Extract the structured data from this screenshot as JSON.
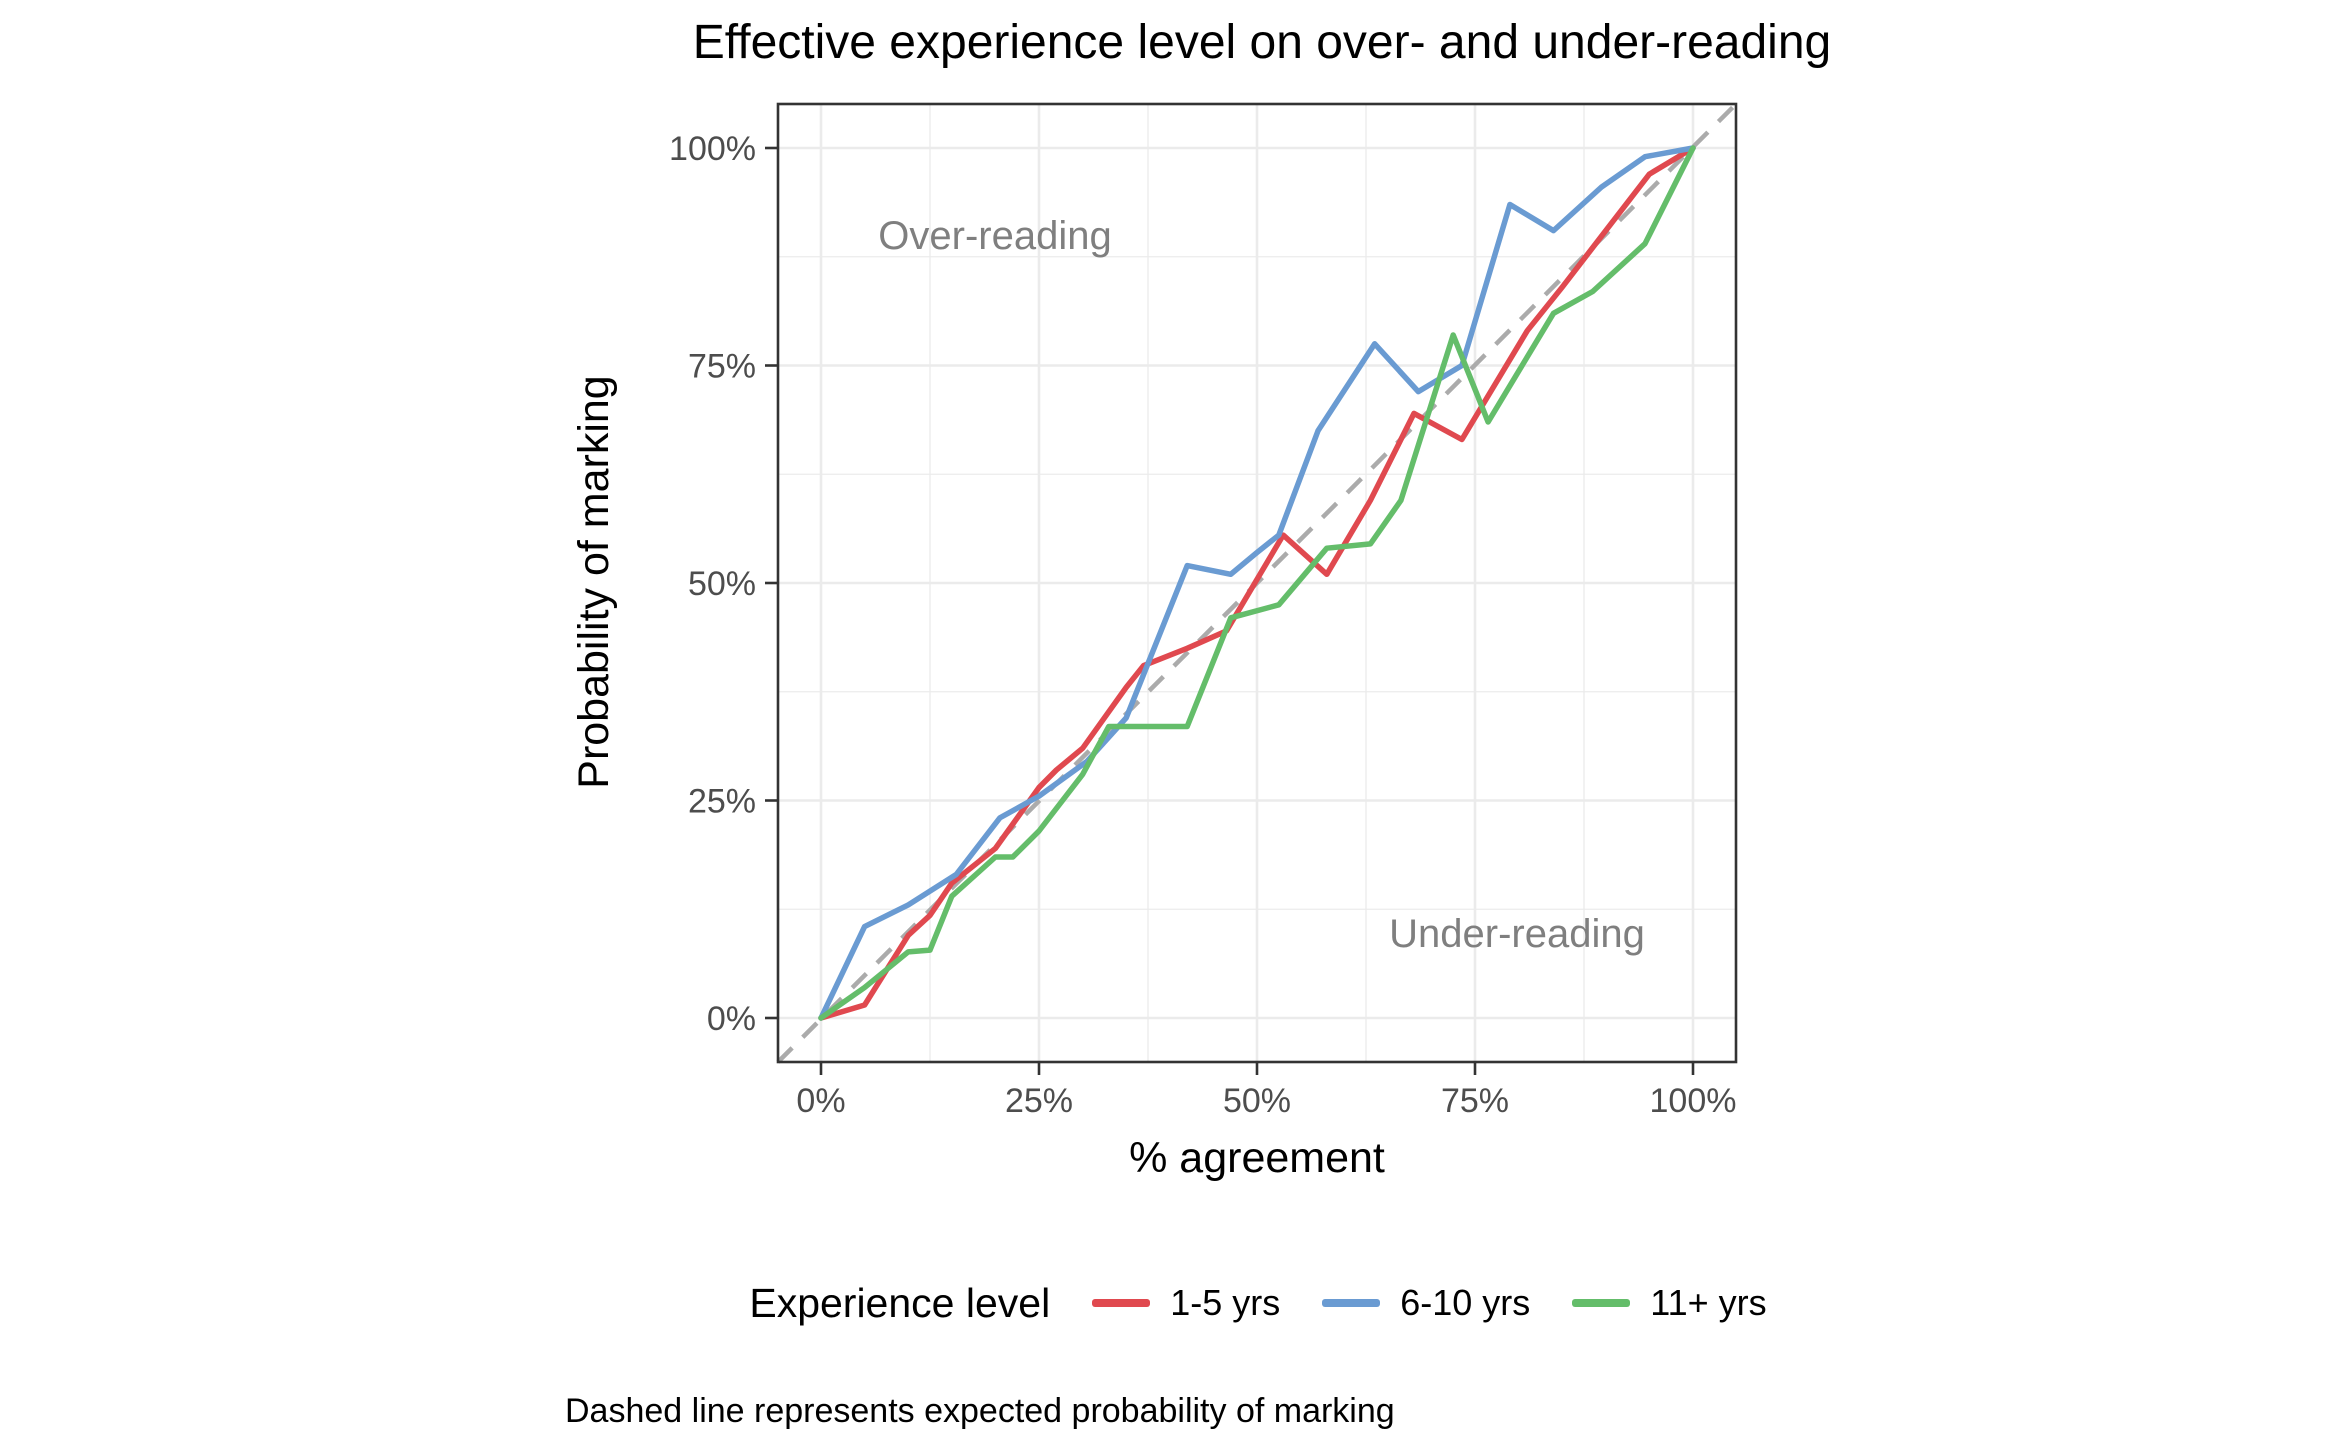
{
  "title": "Effective experience level on over- and under-reading",
  "axes": {
    "x_title": "% agreement",
    "y_title": "Probability of marking",
    "x_tick_labels": [
      "0%",
      "25%",
      "50%",
      "75%",
      "100%"
    ],
    "y_tick_labels": [
      "0%",
      "25%",
      "50%",
      "75%",
      "100%"
    ]
  },
  "annotations": {
    "over_reading": "Over-reading",
    "under_reading": "Under-reading"
  },
  "legend": {
    "title": "Experience level",
    "entries": [
      {
        "label": "1-5 yrs",
        "color": "#e0494f"
      },
      {
        "label": "6-10 yrs",
        "color": "#6a9bd2"
      },
      {
        "label": "11+ yrs",
        "color": "#64bd6a"
      }
    ]
  },
  "caption": "Dashed line represents expected probability of marking",
  "colors": {
    "grid": "#ebebeb",
    "panel_border": "#333333",
    "reference_line": "#ababab",
    "tick_mark": "#333333",
    "annotation_text": "#7f7f7f",
    "tick_text": "#4d4d4d"
  },
  "chart_data": {
    "type": "line",
    "title": "Effective experience level on over- and under-reading",
    "xlabel": "% agreement",
    "ylabel": "Probability of marking",
    "xlim": [
      0,
      100
    ],
    "ylim": [
      0,
      100
    ],
    "unit": "percent",
    "x_ticks": [
      0,
      25,
      50,
      75,
      100
    ],
    "y_ticks": [
      0,
      25,
      50,
      75,
      100
    ],
    "minor_ticks": [
      12.5,
      37.5,
      62.5,
      87.5
    ],
    "grid": true,
    "legend_position": "bottom",
    "reference_line": {
      "style": "dashed",
      "from": [
        0,
        0
      ],
      "to": [
        100,
        100
      ],
      "meaning": "expected probability of marking (y = x)"
    },
    "series": [
      {
        "name": "1-5 yrs",
        "color": "#e0494f",
        "points": [
          [
            0,
            0
          ],
          [
            5,
            1.5
          ],
          [
            10,
            9.5
          ],
          [
            12.5,
            11.8
          ],
          [
            15,
            15.5
          ],
          [
            20,
            19.5
          ],
          [
            25,
            26.5
          ],
          [
            27,
            28.5
          ],
          [
            30,
            31
          ],
          [
            35,
            38
          ],
          [
            37,
            40.5
          ],
          [
            42,
            42.5
          ],
          [
            46.5,
            44.5
          ],
          [
            53,
            55.5
          ],
          [
            58,
            51
          ],
          [
            63,
            59.5
          ],
          [
            68,
            69.5
          ],
          [
            73.5,
            66.5
          ],
          [
            81,
            79
          ],
          [
            85,
            84
          ],
          [
            90,
            90.5
          ],
          [
            95,
            97
          ],
          [
            100,
            100
          ]
        ]
      },
      {
        "name": "6-10 yrs",
        "color": "#6a9bd2",
        "points": [
          [
            0,
            0
          ],
          [
            5,
            10.5
          ],
          [
            10,
            13
          ],
          [
            15.5,
            16.5
          ],
          [
            20.5,
            23
          ],
          [
            25,
            25.5
          ],
          [
            30.5,
            29.5
          ],
          [
            35,
            34.5
          ],
          [
            42,
            52
          ],
          [
            47,
            51
          ],
          [
            50,
            53.5
          ],
          [
            52.5,
            55.5
          ],
          [
            57,
            67.5
          ],
          [
            63.5,
            77.5
          ],
          [
            68.5,
            72
          ],
          [
            73.5,
            75
          ],
          [
            79,
            93.5
          ],
          [
            84,
            90.5
          ],
          [
            89.5,
            95.5
          ],
          [
            94.5,
            99
          ],
          [
            100,
            100
          ]
        ]
      },
      {
        "name": "11+ yrs",
        "color": "#64bd6a",
        "points": [
          [
            0,
            0
          ],
          [
            5,
            3.5
          ],
          [
            10,
            7.6
          ],
          [
            12.5,
            7.8
          ],
          [
            15,
            14
          ],
          [
            20,
            18.5
          ],
          [
            22,
            18.5
          ],
          [
            25,
            21.5
          ],
          [
            30,
            28
          ],
          [
            33,
            33.5
          ],
          [
            42,
            33.5
          ],
          [
            47,
            46
          ],
          [
            52.5,
            47.5
          ],
          [
            58,
            54
          ],
          [
            63,
            54.5
          ],
          [
            66.5,
            59.5
          ],
          [
            72.5,
            78.5
          ],
          [
            76.5,
            68.5
          ],
          [
            84,
            81
          ],
          [
            88.5,
            83.5
          ],
          [
            94.5,
            89
          ],
          [
            100,
            100
          ]
        ]
      }
    ],
    "annotations": [
      {
        "text": "Over-reading",
        "x": 20,
        "y": 90
      },
      {
        "text": "Under-reading",
        "x": 80,
        "y": 10
      }
    ]
  }
}
